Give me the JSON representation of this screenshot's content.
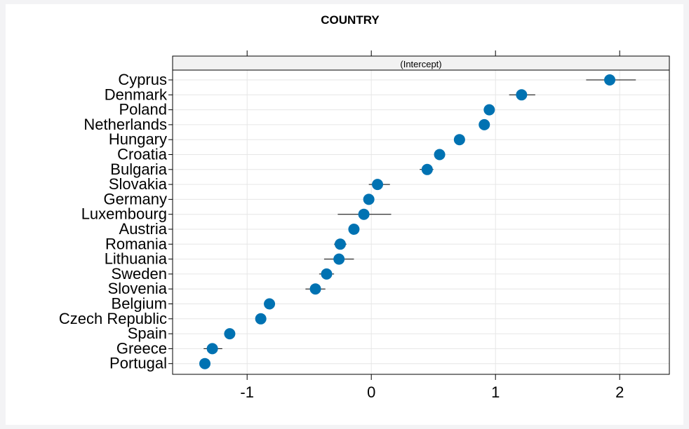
{
  "chart_data": {
    "type": "dotplot",
    "title": "COUNTRY",
    "strip_label": "(Intercept)",
    "xlabel": "",
    "ylabel": "",
    "xlim": [
      -1.6,
      2.4
    ],
    "x_ticks": [
      -1,
      0,
      1,
      2
    ],
    "x_tick_labels": [
      "-1",
      "0",
      "1",
      "2"
    ],
    "grid": true,
    "point_color": "#0072b2",
    "categories": [
      "Cyprus",
      "Denmark",
      "Poland",
      "Netherlands",
      "Hungary",
      "Croatia",
      "Bulgaria",
      "Slovakia",
      "Germany",
      "Luxembourg",
      "Austria",
      "Romania",
      "Lithuania",
      "Sweden",
      "Slovenia",
      "Belgium",
      "Czech Republic",
      "Spain",
      "Greece",
      "Portugal"
    ],
    "values": [
      1.92,
      1.21,
      0.95,
      0.91,
      0.71,
      0.55,
      0.45,
      0.05,
      -0.02,
      -0.06,
      -0.14,
      -0.25,
      -0.26,
      -0.36,
      -0.45,
      -0.82,
      -0.89,
      -1.14,
      -1.28,
      -1.34
    ],
    "lower": [
      1.73,
      1.11,
      0.91,
      0.87,
      0.67,
      0.51,
      0.39,
      -0.02,
      -0.06,
      -0.27,
      -0.18,
      -0.3,
      -0.38,
      -0.42,
      -0.53,
      -0.86,
      -0.93,
      -1.18,
      -1.35,
      -1.38
    ],
    "upper": [
      2.13,
      1.32,
      0.99,
      0.95,
      0.75,
      0.59,
      0.5,
      0.15,
      0.02,
      0.16,
      -0.1,
      -0.2,
      -0.14,
      -0.3,
      -0.37,
      -0.78,
      -0.85,
      -1.1,
      -1.2,
      -1.3
    ]
  }
}
